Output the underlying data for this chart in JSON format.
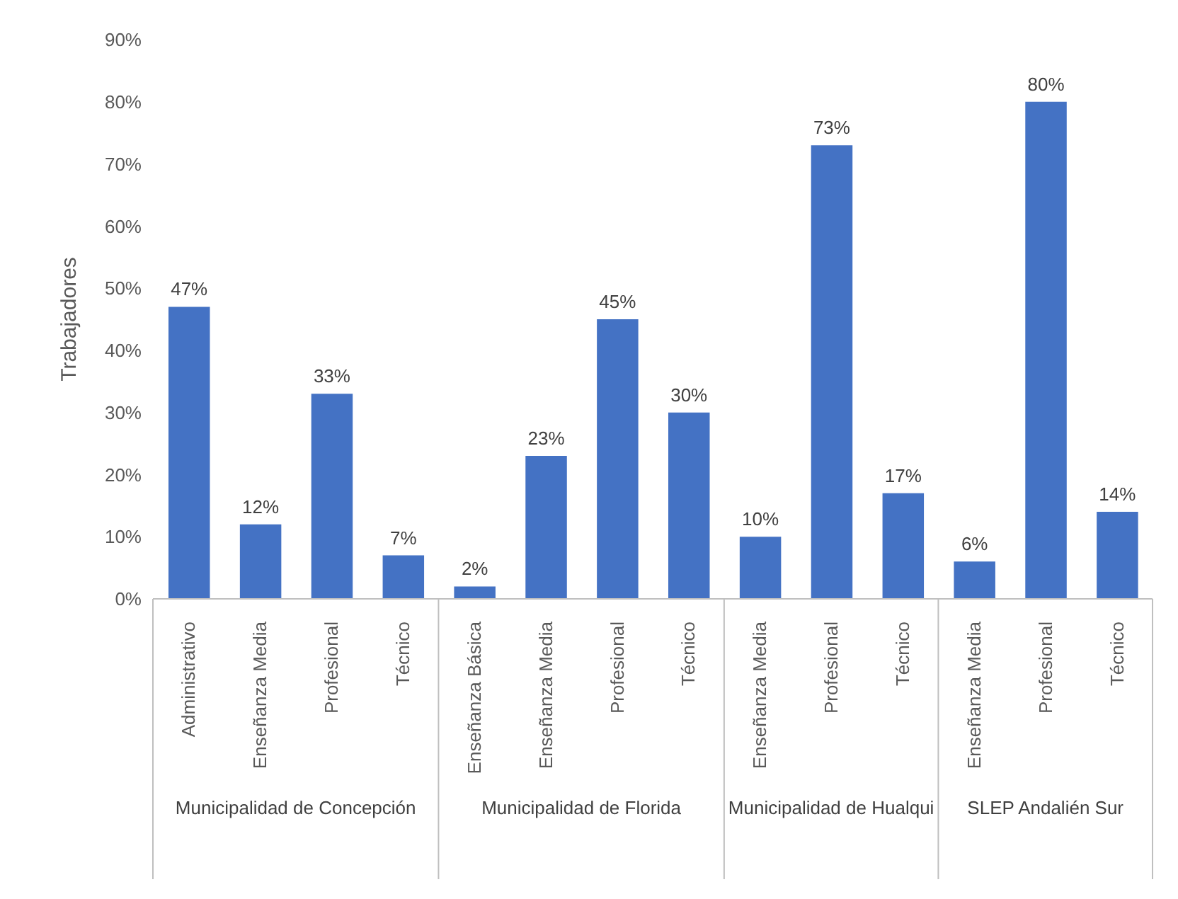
{
  "chart_data": {
    "type": "bar",
    "ylabel": "Trabajadores",
    "categories": [
      "Administrativo",
      "Enseñanza Media",
      "Profesional",
      "Técnico",
      "Enseñanza Básica",
      "Enseñanza Media",
      "Profesional",
      "Técnico",
      "Enseñanza Media",
      "Profesional",
      "Técnico",
      "Enseñanza Media",
      "Profesional",
      "Técnico"
    ],
    "values": [
      47,
      12,
      33,
      7,
      2,
      23,
      45,
      30,
      10,
      73,
      17,
      6,
      80,
      14
    ],
    "value_labels": [
      "47%",
      "12%",
      "33%",
      "7%",
      "2%",
      "23%",
      "45%",
      "30%",
      "10%",
      "73%",
      "17%",
      "6%",
      "80%",
      "14%"
    ],
    "color": "#4472c4",
    "ylim": [
      0,
      90
    ],
    "yticks": [
      {
        "value": 0,
        "label": "0%"
      },
      {
        "value": 10,
        "label": "10%"
      },
      {
        "value": 20,
        "label": "20%"
      },
      {
        "value": 30,
        "label": "30%"
      },
      {
        "value": 40,
        "label": "40%"
      },
      {
        "value": 50,
        "label": "50%"
      },
      {
        "value": 60,
        "label": "60%"
      },
      {
        "value": 70,
        "label": "70%"
      },
      {
        "value": 80,
        "label": "80%"
      },
      {
        "value": 90,
        "label": "90%"
      }
    ],
    "annotations": [
      "Municipalidad de Concepción",
      "Municipalidad de Florida",
      "Municipalidad de Hualqui",
      "SLEP Andalién Sur"
    ],
    "grid": false,
    "legend": false
  }
}
